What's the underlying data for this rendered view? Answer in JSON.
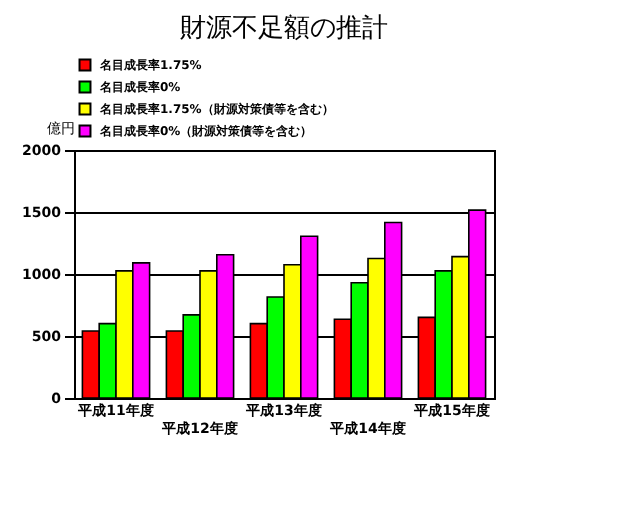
{
  "chart_data": {
    "type": "bar",
    "title": "財源不足額の推計",
    "ylabel": "億円",
    "categories": [
      "平成11年度",
      "平成12年度",
      "平成13年度",
      "平成14年度",
      "平成15年度"
    ],
    "series": [
      {
        "name": "名目成長率1.75%",
        "color": "#ff0000",
        "values": [
          540,
          540,
          600,
          635,
          650
        ]
      },
      {
        "name": "名目成長率0%",
        "color": "#00ff00",
        "values": [
          600,
          670,
          815,
          930,
          1025
        ]
      },
      {
        "name": "名目成長率1.75%（財源対策債等を含む）",
        "color": "#ffff00",
        "values": [
          1025,
          1025,
          1075,
          1125,
          1140
        ]
      },
      {
        "name": "名目成長率0%（財源対策債等を含む）",
        "color": "#ff00ff",
        "values": [
          1090,
          1155,
          1305,
          1415,
          1515
        ]
      }
    ],
    "ylim": [
      0,
      2000
    ],
    "yticks": [
      0,
      500,
      1000,
      1500,
      2000
    ],
    "grid": "y",
    "legend": "top left"
  }
}
